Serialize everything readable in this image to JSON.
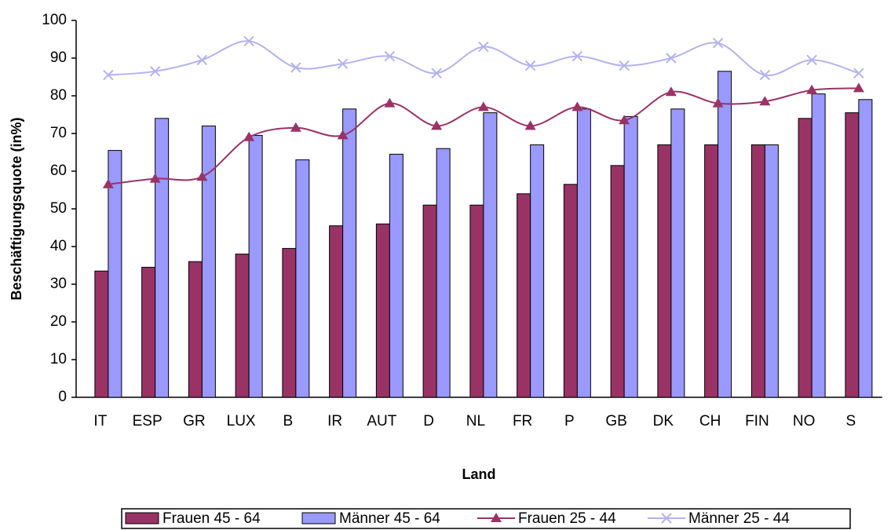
{
  "chart_data": {
    "type": "bar",
    "ylabel": "Beschäftigungsquote (in%)",
    "xlabel": "Land",
    "categories": [
      "IT",
      "ESP",
      "GR",
      "LUX",
      "B",
      "IR",
      "AUT",
      "D",
      "NL",
      "FR",
      "P",
      "GB",
      "DK",
      "CH",
      "FIN",
      "NO",
      "S"
    ],
    "series": [
      {
        "name": "Frauen 45 - 64",
        "type": "bar",
        "color": "#993366",
        "values": [
          33.5,
          34.5,
          36,
          38,
          39.5,
          45.5,
          46,
          51,
          51,
          54,
          56.5,
          61.5,
          67,
          67,
          67,
          74,
          75.5
        ]
      },
      {
        "name": "Männer 45 - 64",
        "type": "bar",
        "color": "#9999ff",
        "values": [
          65.5,
          74,
          72,
          69.5,
          63,
          76.5,
          64.5,
          66,
          75.5,
          67,
          76.5,
          74.5,
          76.5,
          86.5,
          67,
          80.5,
          79
        ]
      },
      {
        "name": "Frauen 25 - 44",
        "type": "line",
        "marker": "triangle",
        "color": "#993366",
        "values": [
          56.5,
          58,
          58.5,
          69,
          71.5,
          69.5,
          78,
          72,
          77,
          72,
          77,
          73.5,
          81,
          78,
          78.5,
          81.5,
          82
        ]
      },
      {
        "name": "Männer 25 - 44",
        "type": "line",
        "marker": "x",
        "color": "#b3b3f0",
        "values": [
          85.5,
          86.5,
          89.5,
          94.5,
          87.5,
          88.5,
          90.5,
          86,
          93,
          88,
          90.5,
          88,
          90,
          94,
          85.5,
          89.5,
          86
        ]
      }
    ],
    "ylim": [
      0,
      100
    ],
    "yticks": [
      0,
      10,
      20,
      30,
      40,
      50,
      60,
      70,
      80,
      90,
      100
    ],
    "grid": false,
    "legend": "bottom"
  }
}
